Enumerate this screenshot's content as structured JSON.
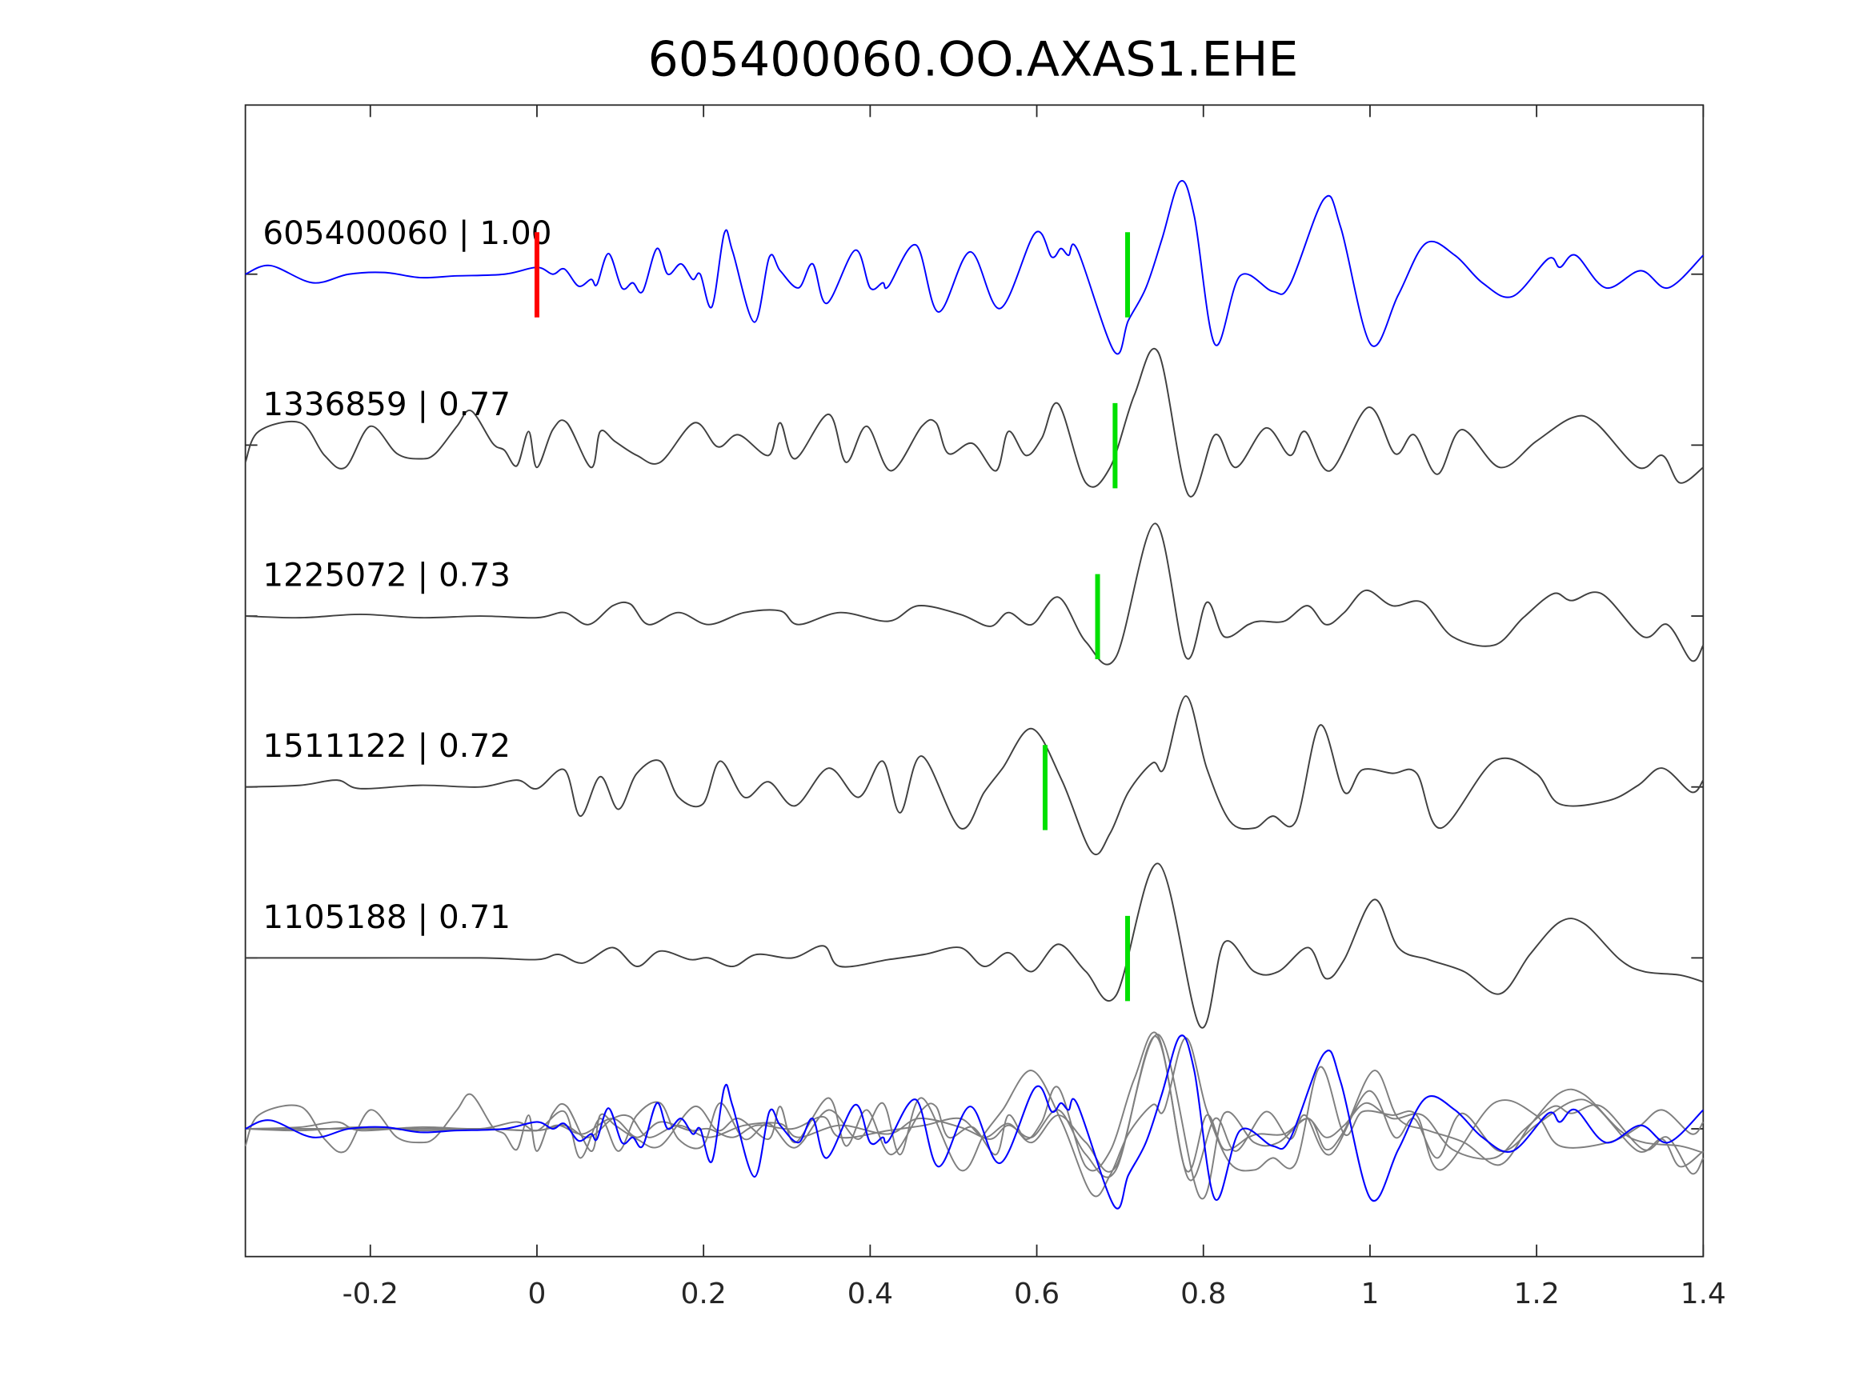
{
  "chart_data": {
    "type": "line",
    "title": "605400060.OO.AXAS1.EHE",
    "xlabel": "",
    "ylabel": "",
    "xlim": [
      -0.35,
      1.4
    ],
    "xticks": [
      -0.2,
      0,
      0.2,
      0.4,
      0.6,
      0.8,
      1,
      1.2,
      1.4
    ],
    "xtick_labels": [
      "-0.2",
      "0",
      "0.2",
      "0.4",
      "0.6",
      "0.8",
      "1",
      "1.2",
      "1.4"
    ],
    "grid": false,
    "colors": {
      "template": "#0000ff",
      "match": "#404040",
      "overlay": "#7f7f7f",
      "origin_pick": "#ff0000",
      "pick": "#00e000"
    },
    "origin_pick_time": 0,
    "series": [
      {
        "name": "605400060",
        "label": "605400060 | 1.00",
        "cc": 1.0,
        "pick_time": 0.709,
        "template": true,
        "points": [
          [
            -0.35,
            0
          ],
          [
            -0.32,
            0.05
          ],
          [
            -0.269,
            -0.05
          ],
          [
            -0.226,
            0
          ],
          [
            -0.183,
            0.01
          ],
          [
            -0.14,
            -0.02
          ],
          [
            -0.096,
            -0.01
          ],
          [
            -0.039,
            0
          ],
          [
            0,
            0.04
          ],
          [
            0.019,
            0
          ],
          [
            0.033,
            0.03
          ],
          [
            0.05,
            -0.07
          ],
          [
            0.065,
            -0.03
          ],
          [
            0.072,
            -0.06
          ],
          [
            0.086,
            0.12
          ],
          [
            0.102,
            -0.08
          ],
          [
            0.115,
            -0.05
          ],
          [
            0.127,
            -0.1
          ],
          [
            0.144,
            0.15
          ],
          [
            0.157,
            0
          ],
          [
            0.173,
            0.06
          ],
          [
            0.187,
            -0.03
          ],
          [
            0.196,
            0
          ],
          [
            0.21,
            -0.19
          ],
          [
            0.225,
            0.24
          ],
          [
            0.235,
            0.13
          ],
          [
            0.261,
            -0.28
          ],
          [
            0.279,
            0.1
          ],
          [
            0.292,
            0.02
          ],
          [
            0.314,
            -0.08
          ],
          [
            0.331,
            0.06
          ],
          [
            0.348,
            -0.17
          ],
          [
            0.382,
            0.14
          ],
          [
            0.4,
            -0.08
          ],
          [
            0.415,
            -0.05
          ],
          [
            0.422,
            -0.07
          ],
          [
            0.455,
            0.17
          ],
          [
            0.482,
            -0.22
          ],
          [
            0.52,
            0.13
          ],
          [
            0.556,
            -0.2
          ],
          [
            0.598,
            0.24
          ],
          [
            0.618,
            0.1
          ],
          [
            0.629,
            0.15
          ],
          [
            0.638,
            0.11
          ],
          [
            0.649,
            0.14
          ],
          [
            0.693,
            -0.45
          ],
          [
            0.71,
            -0.27
          ],
          [
            0.731,
            -0.08
          ],
          [
            0.75,
            0.2
          ],
          [
            0.772,
            0.54
          ],
          [
            0.789,
            0.34
          ],
          [
            0.814,
            -0.41
          ],
          [
            0.844,
            -0.01
          ],
          [
            0.883,
            -0.1
          ],
          [
            0.904,
            -0.06
          ],
          [
            0.945,
            0.44
          ],
          [
            0.965,
            0.27
          ],
          [
            1.001,
            -0.41
          ],
          [
            1.034,
            -0.12
          ],
          [
            1.067,
            0.18
          ],
          [
            1.102,
            0.11
          ],
          [
            1.135,
            -0.05
          ],
          [
            1.171,
            -0.13
          ],
          [
            1.214,
            0.09
          ],
          [
            1.228,
            0.04
          ],
          [
            1.247,
            0.11
          ],
          [
            1.283,
            -0.08
          ],
          [
            1.325,
            0.02
          ],
          [
            1.358,
            -0.08
          ],
          [
            1.4,
            0.11
          ]
        ]
      },
      {
        "name": "1336859",
        "label": "1336859 | 0.77",
        "cc": 0.77,
        "pick_time": 0.694,
        "points": [
          [
            -0.35,
            -0.1
          ],
          [
            -0.334,
            0.08
          ],
          [
            -0.284,
            0.13
          ],
          [
            -0.255,
            -0.06
          ],
          [
            -0.23,
            -0.13
          ],
          [
            -0.2,
            0.11
          ],
          [
            -0.168,
            -0.05
          ],
          [
            -0.14,
            -0.08
          ],
          [
            -0.122,
            -0.05
          ],
          [
            -0.096,
            0.11
          ],
          [
            -0.079,
            0.2
          ],
          [
            -0.053,
            0.01
          ],
          [
            -0.039,
            -0.03
          ],
          [
            -0.024,
            -0.12
          ],
          [
            -0.01,
            0.08
          ],
          [
            0,
            -0.13
          ],
          [
            0.019,
            0.09
          ],
          [
            0.036,
            0.13
          ],
          [
            0.065,
            -0.13
          ],
          [
            0.076,
            0.08
          ],
          [
            0.094,
            0.02
          ],
          [
            0.12,
            -0.06
          ],
          [
            0.148,
            -0.1
          ],
          [
            0.189,
            0.13
          ],
          [
            0.217,
            -0.01
          ],
          [
            0.242,
            0.06
          ],
          [
            0.278,
            -0.06
          ],
          [
            0.292,
            0.13
          ],
          [
            0.31,
            -0.08
          ],
          [
            0.35,
            0.18
          ],
          [
            0.371,
            -0.1
          ],
          [
            0.396,
            0.11
          ],
          [
            0.425,
            -0.15
          ],
          [
            0.462,
            0.11
          ],
          [
            0.479,
            0.13
          ],
          [
            0.494,
            -0.05
          ],
          [
            0.523,
            0.01
          ],
          [
            0.551,
            -0.15
          ],
          [
            0.566,
            0.08
          ],
          [
            0.587,
            -0.06
          ],
          [
            0.606,
            0.04
          ],
          [
            0.626,
            0.24
          ],
          [
            0.659,
            -0.22
          ],
          [
            0.688,
            -0.13
          ],
          [
            0.717,
            0.29
          ],
          [
            0.746,
            0.54
          ],
          [
            0.782,
            -0.29
          ],
          [
            0.814,
            0.06
          ],
          [
            0.839,
            -0.13
          ],
          [
            0.875,
            0.1
          ],
          [
            0.904,
            -0.06
          ],
          [
            0.922,
            0.08
          ],
          [
            0.952,
            -0.15
          ],
          [
            0.998,
            0.22
          ],
          [
            1.03,
            -0.05
          ],
          [
            1.053,
            0.06
          ],
          [
            1.081,
            -0.17
          ],
          [
            1.11,
            0.09
          ],
          [
            1.156,
            -0.13
          ],
          [
            1.199,
            0.02
          ],
          [
            1.243,
            0.16
          ],
          [
            1.271,
            0.13
          ],
          [
            1.322,
            -0.13
          ],
          [
            1.351,
            -0.06
          ],
          [
            1.372,
            -0.22
          ],
          [
            1.4,
            -0.13
          ]
        ]
      },
      {
        "name": "1225072",
        "label": "1225072 | 0.73",
        "cc": 0.73,
        "pick_time": 0.673,
        "points": [
          [
            -0.35,
            0
          ],
          [
            -0.284,
            -0.01
          ],
          [
            -0.212,
            0.01
          ],
          [
            -0.14,
            -0.01
          ],
          [
            -0.068,
            0
          ],
          [
            0,
            -0.01
          ],
          [
            0.033,
            0.02
          ],
          [
            0.062,
            -0.05
          ],
          [
            0.091,
            0.06
          ],
          [
            0.112,
            0.07
          ],
          [
            0.134,
            -0.05
          ],
          [
            0.17,
            0.02
          ],
          [
            0.206,
            -0.05
          ],
          [
            0.249,
            0.02
          ],
          [
            0.292,
            0.03
          ],
          [
            0.314,
            -0.05
          ],
          [
            0.364,
            0.02
          ],
          [
            0.422,
            -0.03
          ],
          [
            0.458,
            0.06
          ],
          [
            0.508,
            0.01
          ],
          [
            0.544,
            -0.06
          ],
          [
            0.566,
            0.02
          ],
          [
            0.594,
            -0.05
          ],
          [
            0.626,
            0.11
          ],
          [
            0.659,
            -0.15
          ],
          [
            0.695,
            -0.24
          ],
          [
            0.742,
            0.54
          ],
          [
            0.779,
            -0.24
          ],
          [
            0.804,
            0.08
          ],
          [
            0.825,
            -0.12
          ],
          [
            0.854,
            -0.05
          ],
          [
            0.868,
            -0.03
          ],
          [
            0.897,
            -0.03
          ],
          [
            0.925,
            0.06
          ],
          [
            0.947,
            -0.05
          ],
          [
            0.969,
            0.02
          ],
          [
            0.995,
            0.15
          ],
          [
            1.027,
            0.06
          ],
          [
            1.063,
            0.08
          ],
          [
            1.099,
            -0.12
          ],
          [
            1.149,
            -0.17
          ],
          [
            1.184,
            -0.01
          ],
          [
            1.22,
            0.13
          ],
          [
            1.242,
            0.09
          ],
          [
            1.278,
            0.13
          ],
          [
            1.328,
            -0.12
          ],
          [
            1.357,
            -0.05
          ],
          [
            1.386,
            -0.26
          ],
          [
            1.4,
            -0.17
          ]
        ]
      },
      {
        "name": "1511122",
        "label": "1511122 | 0.72",
        "cc": 0.72,
        "pick_time": 0.61,
        "points": [
          [
            -0.35,
            0
          ],
          [
            -0.284,
            0.01
          ],
          [
            -0.24,
            0.04
          ],
          [
            -0.212,
            -0.01
          ],
          [
            -0.14,
            0.01
          ],
          [
            -0.068,
            0
          ],
          [
            -0.024,
            0.04
          ],
          [
            0,
            -0.01
          ],
          [
            0.033,
            0.1
          ],
          [
            0.052,
            -0.17
          ],
          [
            0.076,
            0.06
          ],
          [
            0.098,
            -0.13
          ],
          [
            0.12,
            0.08
          ],
          [
            0.148,
            0.15
          ],
          [
            0.17,
            -0.06
          ],
          [
            0.199,
            -0.1
          ],
          [
            0.22,
            0.15
          ],
          [
            0.249,
            -0.06
          ],
          [
            0.278,
            0.03
          ],
          [
            0.31,
            -0.11
          ],
          [
            0.35,
            0.11
          ],
          [
            0.386,
            -0.06
          ],
          [
            0.415,
            0.15
          ],
          [
            0.436,
            -0.15
          ],
          [
            0.462,
            0.18
          ],
          [
            0.508,
            -0.24
          ],
          [
            0.537,
            -0.03
          ],
          [
            0.559,
            0.11
          ],
          [
            0.594,
            0.34
          ],
          [
            0.63,
            0.04
          ],
          [
            0.666,
            -0.38
          ],
          [
            0.688,
            -0.27
          ],
          [
            0.71,
            -0.03
          ],
          [
            0.739,
            0.14
          ],
          [
            0.753,
            0.11
          ],
          [
            0.779,
            0.53
          ],
          [
            0.804,
            0.11
          ],
          [
            0.832,
            -0.2
          ],
          [
            0.861,
            -0.24
          ],
          [
            0.883,
            -0.17
          ],
          [
            0.911,
            -0.2
          ],
          [
            0.94,
            0.36
          ],
          [
            0.969,
            -0.03
          ],
          [
            0.991,
            0.1
          ],
          [
            1.027,
            0.08
          ],
          [
            1.056,
            0.08
          ],
          [
            1.085,
            -0.24
          ],
          [
            1.149,
            0.15
          ],
          [
            1.199,
            0.08
          ],
          [
            1.228,
            -0.1
          ],
          [
            1.286,
            -0.08
          ],
          [
            1.322,
            0.01
          ],
          [
            1.351,
            0.11
          ],
          [
            1.386,
            -0.03
          ],
          [
            1.4,
            0.04
          ]
        ]
      },
      {
        "name": "1105188",
        "label": "1105188 | 0.71",
        "cc": 0.71,
        "pick_time": 0.709,
        "points": [
          [
            -0.35,
            0
          ],
          [
            -0.212,
            0
          ],
          [
            -0.068,
            0
          ],
          [
            0,
            -0.01
          ],
          [
            0.026,
            0.02
          ],
          [
            0.055,
            -0.03
          ],
          [
            0.091,
            0.06
          ],
          [
            0.12,
            -0.05
          ],
          [
            0.148,
            0.04
          ],
          [
            0.184,
            -0.01
          ],
          [
            0.206,
            0
          ],
          [
            0.235,
            -0.05
          ],
          [
            0.264,
            0.02
          ],
          [
            0.307,
            0
          ],
          [
            0.344,
            0.07
          ],
          [
            0.364,
            -0.05
          ],
          [
            0.422,
            -0.01
          ],
          [
            0.465,
            0.02
          ],
          [
            0.508,
            0.06
          ],
          [
            0.537,
            -0.05
          ],
          [
            0.566,
            0.03
          ],
          [
            0.594,
            -0.08
          ],
          [
            0.626,
            0.08
          ],
          [
            0.659,
            -0.08
          ],
          [
            0.695,
            -0.22
          ],
          [
            0.746,
            0.55
          ],
          [
            0.796,
            -0.4
          ],
          [
            0.825,
            0.09
          ],
          [
            0.861,
            -0.08
          ],
          [
            0.89,
            -0.08
          ],
          [
            0.926,
            0.06
          ],
          [
            0.947,
            -0.12
          ],
          [
            0.969,
            -0.01
          ],
          [
            1.005,
            0.34
          ],
          [
            1.034,
            0.06
          ],
          [
            1.07,
            -0.01
          ],
          [
            1.113,
            -0.08
          ],
          [
            1.156,
            -0.21
          ],
          [
            1.192,
            0.02
          ],
          [
            1.228,
            0.21
          ],
          [
            1.257,
            0.2
          ],
          [
            1.3,
            -0.01
          ],
          [
            1.329,
            -0.08
          ],
          [
            1.372,
            -0.1
          ],
          [
            1.4,
            -0.14
          ]
        ]
      }
    ],
    "overlay": {
      "name": "stack",
      "description_label": ""
    }
  }
}
